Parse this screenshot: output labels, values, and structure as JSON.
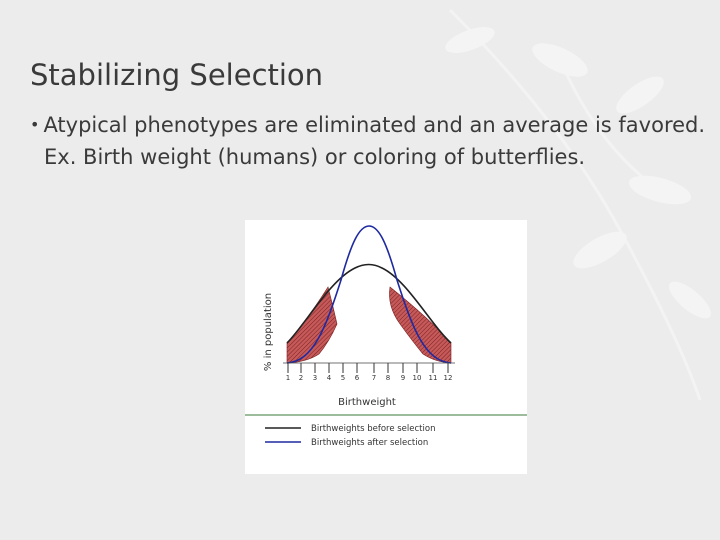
{
  "slide": {
    "title": "Stabilizing Selection",
    "bullet": "Atypical phenotypes are eliminated and an average is favored. Ex. Birth weight (humans) or coloring of butterflies."
  },
  "figure": {
    "y_axis_label": "% in population",
    "x_axis_label": "Birthweight",
    "ticks": [
      "1",
      "2",
      "3",
      "4",
      "5",
      "6",
      "7",
      "8",
      "9",
      "10",
      "11",
      "12"
    ],
    "legend": [
      {
        "label": "Birthweights before selection",
        "color": "#222222"
      },
      {
        "label": "Birthweights after selection",
        "color": "#1f2aa0"
      }
    ],
    "colors": {
      "before": "#222222",
      "after": "#1f2aa0",
      "shaded": "#b84a4a",
      "divider": "#3a7a3a"
    }
  }
}
